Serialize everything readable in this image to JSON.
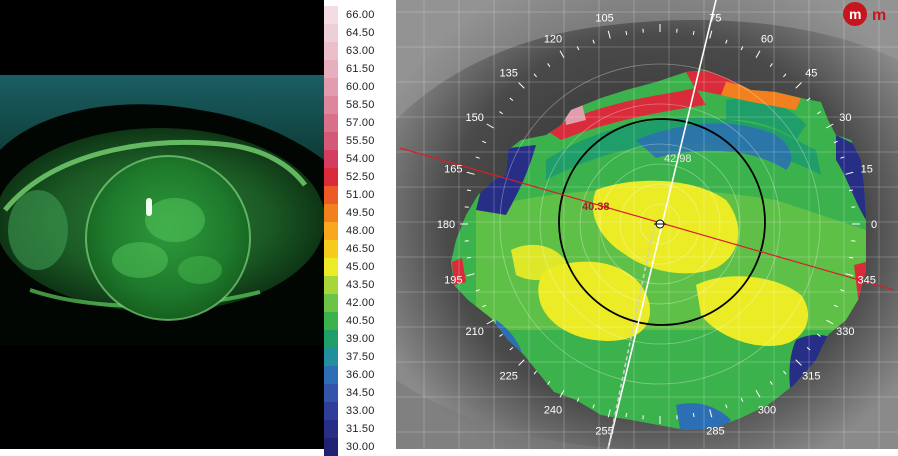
{
  "color_scale": [
    {
      "value": "66.00",
      "color": "#f2dde2"
    },
    {
      "value": "64.50",
      "color": "#efcfd7"
    },
    {
      "value": "63.00",
      "color": "#ebbfca"
    },
    {
      "value": "61.50",
      "color": "#e7afbd"
    },
    {
      "value": "60.00",
      "color": "#e29cae"
    },
    {
      "value": "58.50",
      "color": "#dd879c"
    },
    {
      "value": "57.00",
      "color": "#d9708a"
    },
    {
      "value": "55.50",
      "color": "#d55877"
    },
    {
      "value": "54.00",
      "color": "#d23d60"
    },
    {
      "value": "52.50",
      "color": "#d92b3a"
    },
    {
      "value": "51.00",
      "color": "#ee5a26"
    },
    {
      "value": "49.50",
      "color": "#f3801f"
    },
    {
      "value": "48.00",
      "color": "#f7a81e"
    },
    {
      "value": "46.50",
      "color": "#f7cb1c"
    },
    {
      "value": "45.00",
      "color": "#ecec26"
    },
    {
      "value": "43.50",
      "color": "#a6d63a"
    },
    {
      "value": "42.00",
      "color": "#6cc447"
    },
    {
      "value": "40.50",
      "color": "#3bb24c"
    },
    {
      "value": "39.00",
      "color": "#1f9e69"
    },
    {
      "value": "37.50",
      "color": "#218f9c"
    },
    {
      "value": "36.00",
      "color": "#2d6fb4"
    },
    {
      "value": "34.50",
      "color": "#3454ab"
    },
    {
      "value": "33.00",
      "color": "#2f3d9b"
    },
    {
      "value": "31.50",
      "color": "#272e86"
    },
    {
      "value": "30.00",
      "color": "#1e2270"
    }
  ],
  "map": {
    "degree_labels": [
      "105",
      "75",
      "120",
      "60",
      "135",
      "45",
      "150",
      "30",
      "165",
      "15",
      "180",
      "0",
      "195",
      "345",
      "210",
      "330",
      "225",
      "315",
      "240",
      "300",
      "255",
      "285"
    ],
    "apex_value": "42.98",
    "marker_value": "40.38",
    "logo_glyph": "m",
    "logo_text": "m",
    "colors": {
      "yellow": "#ecec26",
      "green": "#3bb24c",
      "light_green": "#6cc447",
      "teal": "#1f9e69",
      "blue": "#2d6fb4",
      "dark_blue": "#272e86",
      "red": "#d92b3a",
      "orange": "#f3801f",
      "pink": "#e29cae"
    }
  }
}
